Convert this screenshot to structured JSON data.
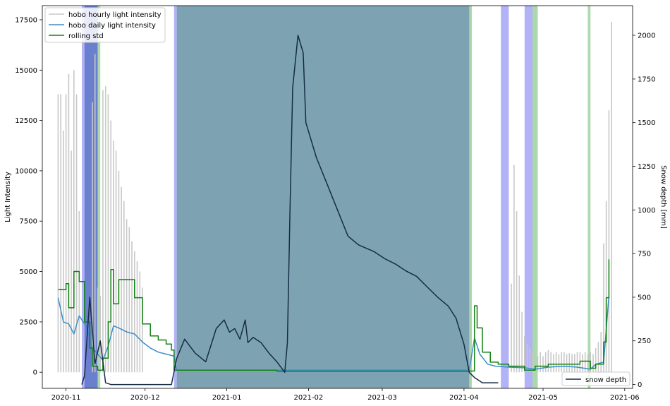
{
  "chart_data": {
    "type": "line",
    "x_axis": {
      "type": "date",
      "range": [
        "2020-10-23",
        "2021-06-04"
      ],
      "ticks": [
        "2020-11",
        "2020-12",
        "2021-01",
        "2021-02",
        "2021-03",
        "2021-04",
        "2021-05",
        "2021-06"
      ]
    },
    "y_left": {
      "label": "Light Intensity",
      "range": [
        -800,
        18200
      ],
      "ticks": [
        0,
        2500,
        5000,
        7500,
        10000,
        12500,
        15000,
        17500
      ]
    },
    "y_right": {
      "label": "Snow depth [mm]",
      "range": [
        -22,
        2170
      ],
      "ticks": [
        0,
        250,
        500,
        750,
        1000,
        1250,
        1500,
        1750,
        2000
      ]
    },
    "legend_upper_left": [
      "hobo hourly light intensity",
      "hobo daily light intensity",
      "rolling std"
    ],
    "legend_lower_right": [
      "snow depth"
    ],
    "colors": {
      "hourly": "#c8c8c8",
      "daily": "#3b8ec7",
      "rolling": "#118011",
      "snow": "#162b45",
      "band_teal": "#2d6a84",
      "band_blue": "#5555ee",
      "band_green": "#6ab86a"
    },
    "shaded_periods": [
      {
        "kind": "teal",
        "start": "2020-11-08",
        "end": "2020-11-13"
      },
      {
        "kind": "blue",
        "start": "2020-11-07",
        "end": "2020-11-13"
      },
      {
        "kind": "green",
        "start": "2020-11-13",
        "end": "2020-11-14"
      },
      {
        "kind": "blue",
        "start": "2020-12-12",
        "end": "2020-12-13"
      },
      {
        "kind": "teal",
        "start": "2020-12-13",
        "end": "2021-04-03"
      },
      {
        "kind": "green",
        "start": "2021-04-03",
        "end": "2021-04-04"
      },
      {
        "kind": "blue",
        "start": "2021-04-15",
        "end": "2021-04-18"
      },
      {
        "kind": "blue",
        "start": "2021-04-24",
        "end": "2021-04-27"
      },
      {
        "kind": "green",
        "start": "2021-04-27",
        "end": "2021-04-29"
      },
      {
        "kind": "green",
        "start": "2021-05-18",
        "end": "2021-05-19"
      }
    ],
    "hourly_daily_peaks": {
      "start_date": "2020-10-29",
      "values": [
        13800,
        13800,
        12000,
        13800,
        14800,
        11000,
        15000,
        13800,
        8000,
        0,
        0,
        0,
        0,
        13400,
        15800,
        4200,
        3800,
        14000,
        14200,
        13800,
        12500,
        11500,
        11000,
        10000,
        9200,
        8500,
        7600,
        7200,
        6500,
        6000,
        5500,
        5000,
        4200,
        0,
        0,
        0,
        0,
        0,
        0,
        0,
        0,
        0,
        0,
        0,
        0,
        0,
        0,
        0,
        0,
        0,
        0,
        0,
        0,
        0,
        0,
        0,
        0,
        0,
        0,
        0,
        0,
        0,
        0,
        0,
        0,
        0,
        0,
        0,
        0,
        0,
        0,
        0,
        0,
        0,
        0,
        0,
        0,
        0,
        0,
        0,
        0,
        0,
        0,
        0,
        0,
        0,
        0,
        0,
        0,
        0,
        0,
        0,
        0,
        0,
        0,
        0,
        0,
        0,
        0,
        0,
        0,
        0,
        0,
        0,
        0,
        0,
        0,
        0,
        0,
        0,
        0,
        0,
        0,
        0,
        0,
        0,
        0,
        0,
        0,
        0,
        0,
        0,
        0,
        0,
        0,
        0,
        0,
        0,
        0,
        0,
        0,
        0,
        0,
        0,
        0,
        0,
        0,
        0,
        0,
        0,
        0,
        0,
        0,
        0,
        0,
        0,
        0,
        0,
        0,
        0,
        0,
        0,
        0,
        0,
        0,
        0,
        0,
        0,
        0,
        0,
        0,
        0,
        0,
        0,
        0,
        0,
        0,
        0,
        0,
        0,
        0,
        0,
        4400,
        10300,
        8000,
        4800,
        3000,
        1800,
        1400,
        1200,
        1000,
        0,
        800,
        1000,
        800,
        1000,
        1100,
        1000,
        900,
        1000,
        900,
        1000,
        1000,
        900,
        950,
        900,
        900,
        1000,
        1000,
        900,
        1000,
        900,
        1000,
        900,
        1200,
        1500,
        2000,
        6400,
        8500,
        13000,
        17400
      ]
    },
    "daily_light": [
      [
        "2020-10-29",
        3700
      ],
      [
        "2020-10-31",
        2500
      ],
      [
        "2020-11-02",
        2400
      ],
      [
        "2020-11-04",
        1900
      ],
      [
        "2020-11-06",
        2800
      ],
      [
        "2020-11-09",
        2200
      ],
      [
        "2020-11-11",
        1200
      ],
      [
        "2020-11-13",
        900
      ],
      [
        "2020-11-15",
        600
      ],
      [
        "2020-11-17",
        1300
      ],
      [
        "2020-11-19",
        2300
      ],
      [
        "2020-11-21",
        2200
      ],
      [
        "2020-11-24",
        2000
      ],
      [
        "2020-11-27",
        1900
      ],
      [
        "2020-11-30",
        1500
      ],
      [
        "2020-12-03",
        1200
      ],
      [
        "2020-12-06",
        1000
      ],
      [
        "2020-12-09",
        900
      ],
      [
        "2020-12-12",
        800
      ],
      [
        "2020-12-13",
        100
      ],
      [
        "2021-04-03",
        100
      ],
      [
        "2021-04-05",
        1700
      ],
      [
        "2021-04-07",
        900
      ],
      [
        "2021-04-10",
        400
      ],
      [
        "2021-04-13",
        300
      ],
      [
        "2021-04-18",
        250
      ],
      [
        "2021-04-24",
        220
      ],
      [
        "2021-04-28",
        150
      ],
      [
        "2021-05-03",
        250
      ],
      [
        "2021-05-09",
        300
      ],
      [
        "2021-05-14",
        250
      ],
      [
        "2021-05-19",
        150
      ],
      [
        "2021-05-21",
        400
      ],
      [
        "2021-05-24",
        500
      ],
      [
        "2021-05-26",
        3800
      ]
    ],
    "rolling_std": [
      [
        "2020-10-29",
        4100
      ],
      [
        "2020-11-01",
        4400
      ],
      [
        "2020-11-02",
        3200
      ],
      [
        "2020-11-04",
        5000
      ],
      [
        "2020-11-06",
        4500
      ],
      [
        "2020-11-08",
        2500
      ],
      [
        "2020-11-10",
        1200
      ],
      [
        "2020-11-11",
        300
      ],
      [
        "2020-11-13",
        100
      ],
      [
        "2020-11-15",
        700
      ],
      [
        "2020-11-17",
        2500
      ],
      [
        "2020-11-18",
        5100
      ],
      [
        "2020-11-19",
        3400
      ],
      [
        "2020-11-21",
        4600
      ],
      [
        "2020-11-24",
        4600
      ],
      [
        "2020-11-27",
        3700
      ],
      [
        "2020-11-30",
        2400
      ],
      [
        "2020-12-03",
        1800
      ],
      [
        "2020-12-06",
        1600
      ],
      [
        "2020-12-09",
        1400
      ],
      [
        "2020-12-11",
        1100
      ],
      [
        "2020-12-12",
        100
      ],
      [
        "2021-01-20",
        50
      ],
      [
        "2021-02-15",
        50
      ],
      [
        "2021-04-03",
        60
      ],
      [
        "2021-04-05",
        3300
      ],
      [
        "2021-04-06",
        2200
      ],
      [
        "2021-04-08",
        1000
      ],
      [
        "2021-04-11",
        500
      ],
      [
        "2021-04-14",
        400
      ],
      [
        "2021-04-18",
        300
      ],
      [
        "2021-04-24",
        100
      ],
      [
        "2021-04-28",
        300
      ],
      [
        "2021-05-03",
        400
      ],
      [
        "2021-05-09",
        400
      ],
      [
        "2021-05-15",
        550
      ],
      [
        "2021-05-19",
        200
      ],
      [
        "2021-05-21",
        400
      ],
      [
        "2021-05-24",
        1500
      ],
      [
        "2021-05-25",
        3700
      ],
      [
        "2021-05-26",
        5600
      ]
    ],
    "snow_depth": [
      [
        "2020-11-07",
        0
      ],
      [
        "2020-11-08",
        50
      ],
      [
        "2020-11-10",
        500
      ],
      [
        "2020-11-12",
        120
      ],
      [
        "2020-11-14",
        250
      ],
      [
        "2020-11-16",
        10
      ],
      [
        "2020-11-18",
        0
      ],
      [
        "2020-11-19",
        0
      ],
      [
        "2020-12-11",
        0
      ],
      [
        "2020-12-13",
        150
      ],
      [
        "2020-12-16",
        260
      ],
      [
        "2020-12-20",
        180
      ],
      [
        "2020-12-24",
        130
      ],
      [
        "2020-12-28",
        320
      ],
      [
        "2020-12-31",
        370
      ],
      [
        "2021-01-02",
        300
      ],
      [
        "2021-01-04",
        320
      ],
      [
        "2021-01-06",
        260
      ],
      [
        "2021-01-08",
        370
      ],
      [
        "2021-01-09",
        240
      ],
      [
        "2021-01-11",
        270
      ],
      [
        "2021-01-14",
        240
      ],
      [
        "2021-01-17",
        180
      ],
      [
        "2021-01-20",
        130
      ],
      [
        "2021-01-23",
        70
      ],
      [
        "2021-01-24",
        240
      ],
      [
        "2021-01-25",
        1000
      ],
      [
        "2021-01-26",
        1700
      ],
      [
        "2021-01-28",
        2000
      ],
      [
        "2021-01-30",
        1900
      ],
      [
        "2021-01-31",
        1500
      ],
      [
        "2021-02-04",
        1300
      ],
      [
        "2021-02-08",
        1150
      ],
      [
        "2021-02-12",
        1000
      ],
      [
        "2021-02-16",
        850
      ],
      [
        "2021-02-20",
        800
      ],
      [
        "2021-02-26",
        760
      ],
      [
        "2021-03-02",
        720
      ],
      [
        "2021-03-06",
        690
      ],
      [
        "2021-03-10",
        650
      ],
      [
        "2021-03-14",
        620
      ],
      [
        "2021-03-18",
        560
      ],
      [
        "2021-03-22",
        500
      ],
      [
        "2021-03-26",
        450
      ],
      [
        "2021-03-29",
        380
      ],
      [
        "2021-04-01",
        230
      ],
      [
        "2021-04-03",
        70
      ],
      [
        "2021-04-05",
        40
      ],
      [
        "2021-04-08",
        10
      ],
      [
        "2021-04-14",
        10
      ]
    ]
  }
}
